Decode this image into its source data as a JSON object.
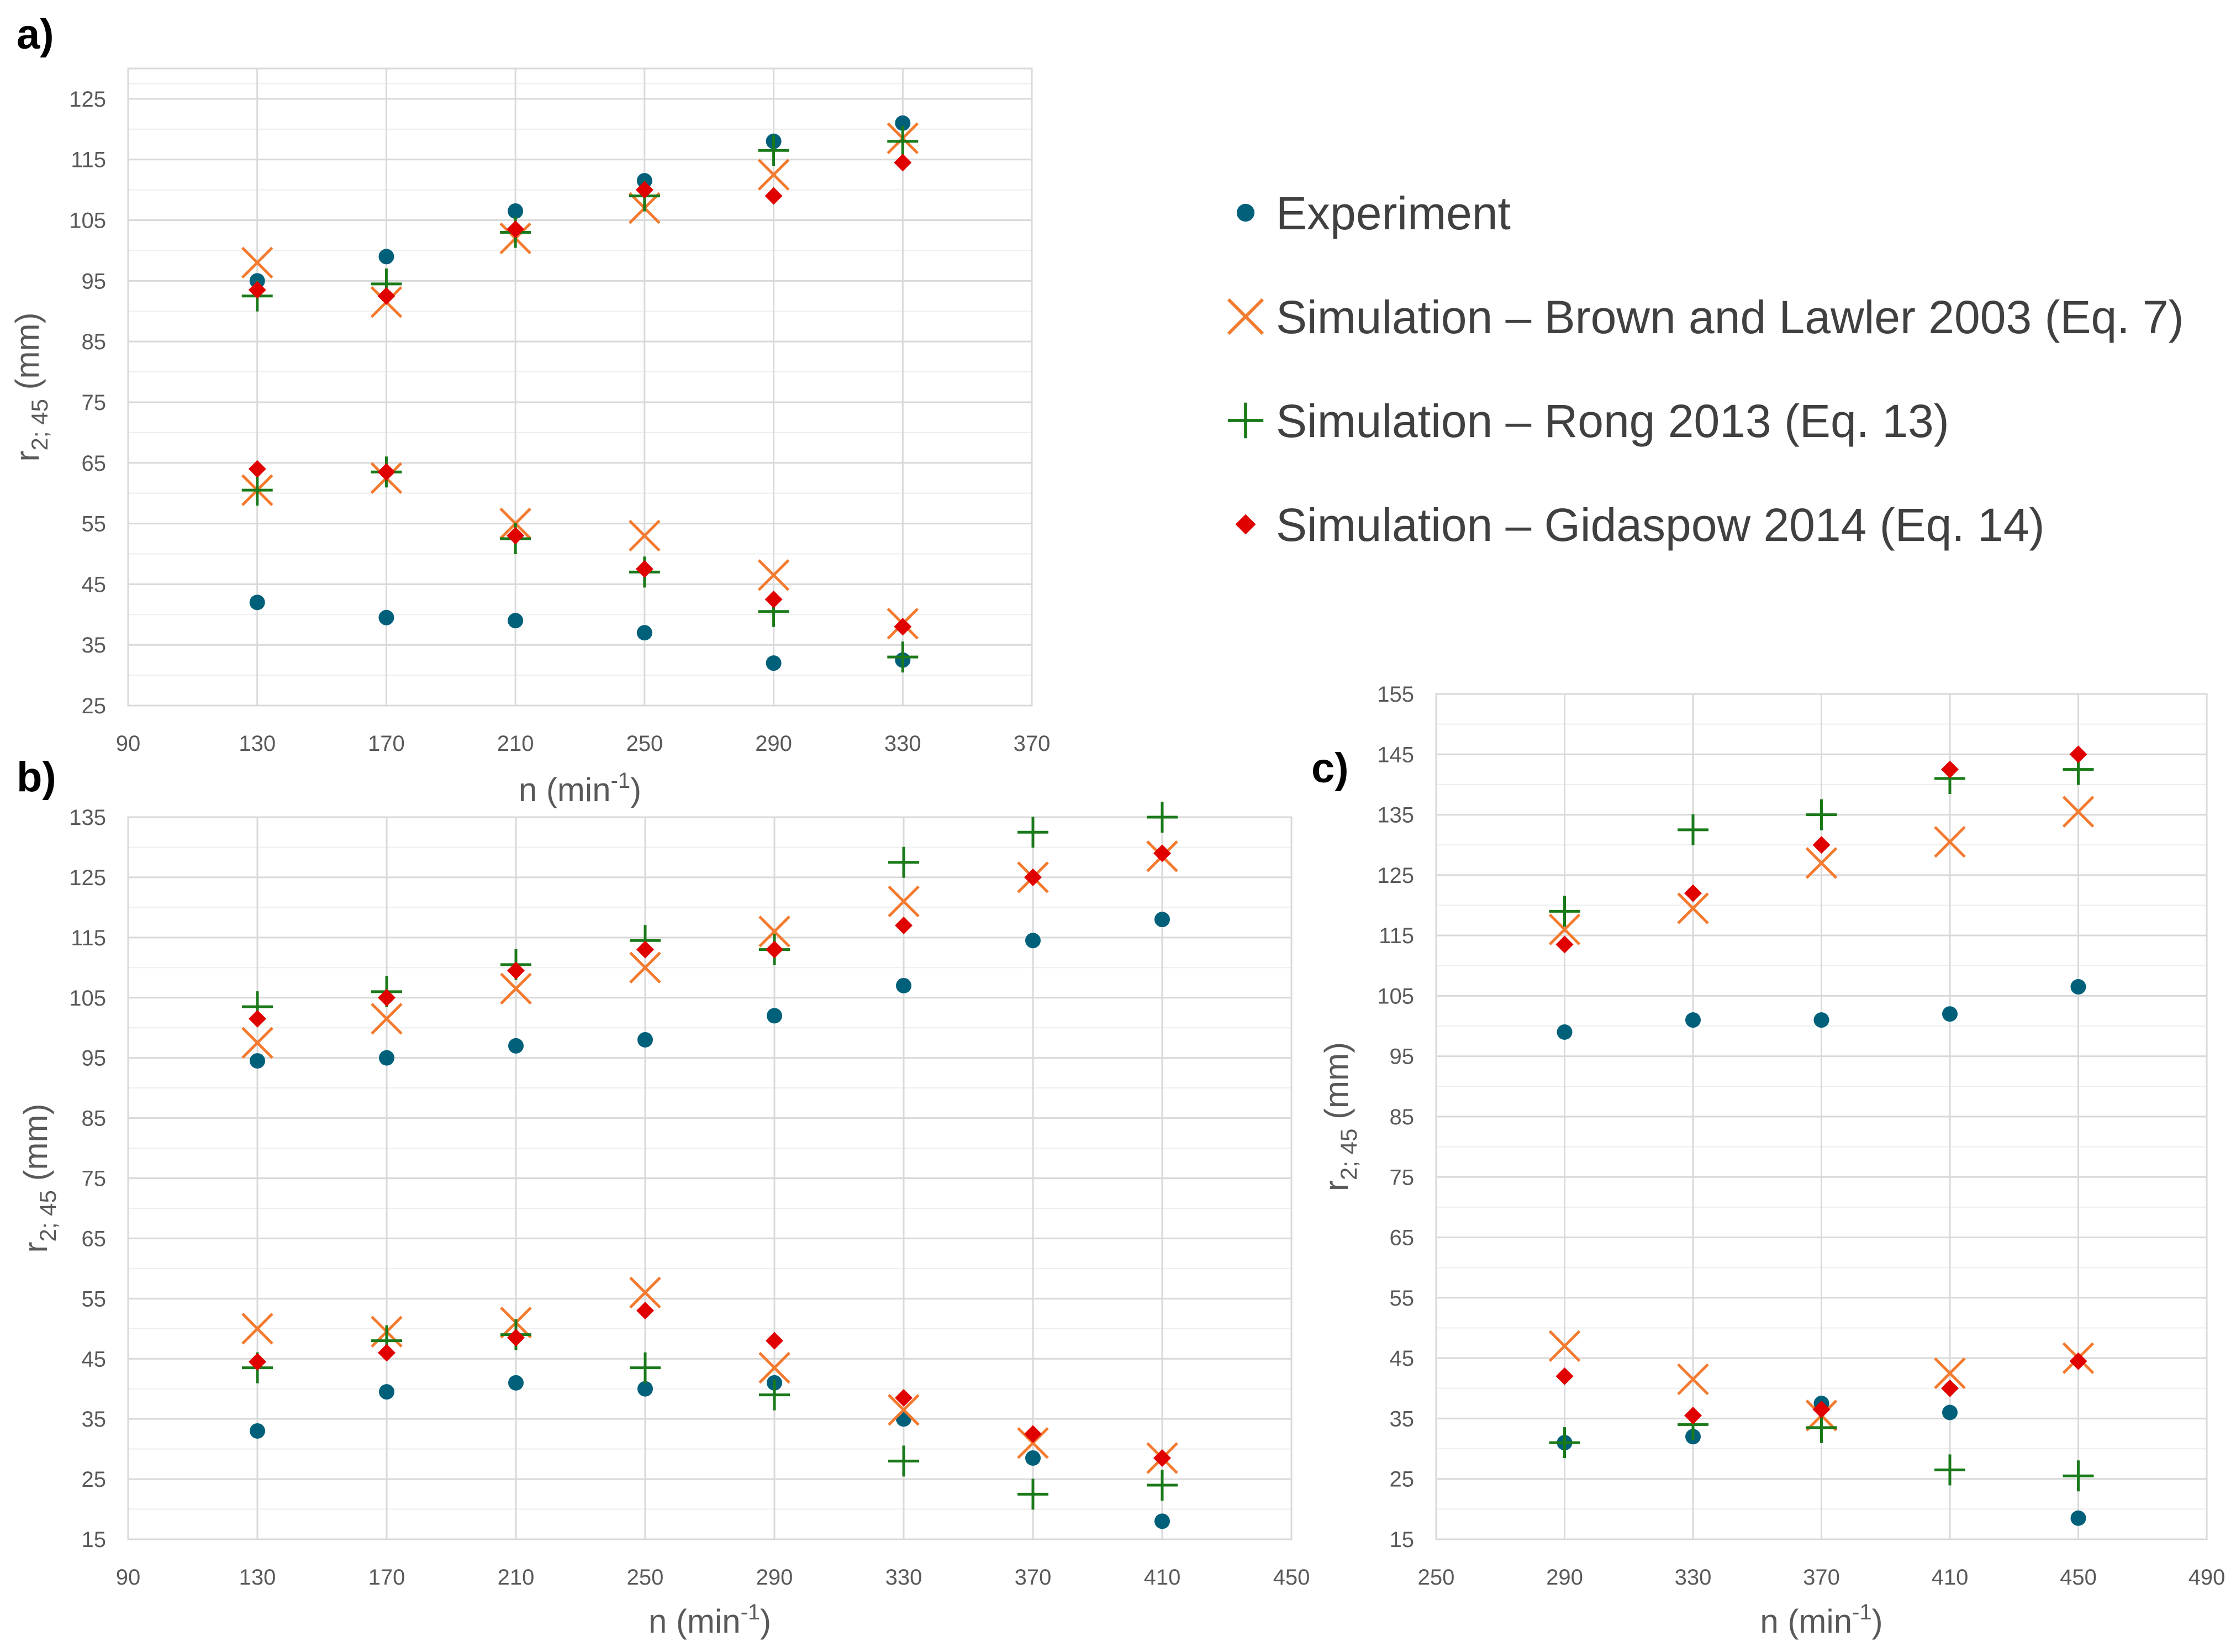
{
  "legend": {
    "items": [
      {
        "name": "Experiment",
        "marker": "circle",
        "color": "#00607a"
      },
      {
        "name": "Simulation – Brown and Lawler 2003 (Eq. 7)",
        "marker": "x",
        "color": "#f37a2e"
      },
      {
        "name": "Simulation – Rong 2013 (Eq. 13)",
        "marker": "plus",
        "color": "#1a7a1a"
      },
      {
        "name": "Simulation – Gidaspow 2014 (Eq. 14)",
        "marker": "diamond",
        "color": "#e00000"
      }
    ]
  },
  "chart_data": [
    {
      "type": "scatter",
      "panel_label": "a)",
      "xlabel": "n (min",
      "xlabel_sup": "-1",
      "xlabel_end": ")",
      "ylabel": "r",
      "ylabel_sub": "2; 45",
      "ylabel_end": " (mm)",
      "xlim": [
        90,
        370
      ],
      "xticks": [
        90,
        130,
        170,
        210,
        250,
        290,
        330,
        370
      ],
      "ylim": [
        25,
        130
      ],
      "yticks": [
        25,
        35,
        45,
        55,
        65,
        75,
        85,
        95,
        105,
        115,
        125
      ],
      "grid": true,
      "series": [
        {
          "name": "Experiment",
          "points": [
            [
              130,
              95
            ],
            [
              170,
              99
            ],
            [
              210,
              106.5
            ],
            [
              250,
              111.5
            ],
            [
              290,
              118
            ],
            [
              330,
              121
            ],
            [
              130,
              42
            ],
            [
              170,
              39.5
            ],
            [
              210,
              39
            ],
            [
              250,
              37
            ],
            [
              290,
              32
            ],
            [
              330,
              32.5
            ]
          ]
        },
        {
          "name": "Simulation – Brown and Lawler 2003 (Eq. 7)",
          "points": [
            [
              130,
              98
            ],
            [
              170,
              91.5
            ],
            [
              210,
              102
            ],
            [
              250,
              107
            ],
            [
              290,
              112.5
            ],
            [
              330,
              118.5
            ],
            [
              130,
              60.5
            ],
            [
              170,
              62.5
            ],
            [
              210,
              55
            ],
            [
              250,
              53
            ],
            [
              290,
              46.5
            ],
            [
              330,
              38.5
            ]
          ]
        },
        {
          "name": "Simulation – Rong 2013 (Eq. 13)",
          "points": [
            [
              130,
              92.5
            ],
            [
              170,
              94.5
            ],
            [
              210,
              103
            ],
            [
              250,
              109
            ],
            [
              290,
              116.5
            ],
            [
              330,
              118
            ],
            [
              130,
              60.5
            ],
            [
              170,
              63.5
            ],
            [
              210,
              52.5
            ],
            [
              250,
              47
            ],
            [
              290,
              40.5
            ],
            [
              330,
              33
            ]
          ]
        },
        {
          "name": "Simulation – Gidaspow 2014 (Eq. 14)",
          "points": [
            [
              130,
              93.5
            ],
            [
              170,
              92.5
            ],
            [
              210,
              103.5
            ],
            [
              250,
              110
            ],
            [
              290,
              109
            ],
            [
              330,
              114.5
            ],
            [
              130,
              64
            ],
            [
              170,
              63.5
            ],
            [
              210,
              53
            ],
            [
              250,
              47.5
            ],
            [
              290,
              42.5
            ],
            [
              330,
              38
            ]
          ]
        }
      ]
    },
    {
      "type": "scatter",
      "panel_label": "b)",
      "xlabel": "n (min",
      "xlabel_sup": "-1",
      "xlabel_end": ")",
      "ylabel": "r",
      "ylabel_sub": "2; 45",
      "ylabel_end": " (mm)",
      "xlim": [
        90,
        450
      ],
      "xticks": [
        90,
        130,
        170,
        210,
        250,
        290,
        330,
        370,
        410,
        450
      ],
      "ylim": [
        15,
        135
      ],
      "yticks": [
        15,
        25,
        35,
        45,
        55,
        65,
        75,
        85,
        95,
        105,
        115,
        125,
        135
      ],
      "grid": true,
      "series": [
        {
          "name": "Experiment",
          "points": [
            [
              130,
              94.5
            ],
            [
              170,
              95
            ],
            [
              210,
              97
            ],
            [
              250,
              98
            ],
            [
              290,
              102
            ],
            [
              330,
              107
            ],
            [
              370,
              114.5
            ],
            [
              410,
              118
            ],
            [
              130,
              33
            ],
            [
              170,
              39.5
            ],
            [
              210,
              41
            ],
            [
              250,
              40
            ],
            [
              290,
              41
            ],
            [
              330,
              35
            ],
            [
              370,
              28.5
            ],
            [
              410,
              18
            ]
          ]
        },
        {
          "name": "Simulation – Brown and Lawler 2003 (Eq. 7)",
          "points": [
            [
              130,
              97.5
            ],
            [
              170,
              101.5
            ],
            [
              210,
              106.5
            ],
            [
              250,
              110
            ],
            [
              290,
              116
            ],
            [
              330,
              121
            ],
            [
              370,
              125
            ],
            [
              410,
              128.5
            ],
            [
              130,
              50
            ],
            [
              170,
              49.5
            ],
            [
              210,
              51
            ],
            [
              250,
              56
            ],
            [
              290,
              43.5
            ],
            [
              330,
              36.5
            ],
            [
              370,
              31
            ],
            [
              410,
              28.5
            ]
          ]
        },
        {
          "name": "Simulation – Rong 2013 (Eq. 13)",
          "points": [
            [
              130,
              103.5
            ],
            [
              170,
              106
            ],
            [
              210,
              110.5
            ],
            [
              250,
              114.5
            ],
            [
              290,
              113
            ],
            [
              330,
              127.5
            ],
            [
              370,
              132.5
            ],
            [
              410,
              135
            ],
            [
              130,
              43.5
            ],
            [
              170,
              48
            ],
            [
              210,
              49
            ],
            [
              250,
              43.5
            ],
            [
              290,
              39
            ],
            [
              330,
              28
            ],
            [
              370,
              22.5
            ],
            [
              410,
              24
            ]
          ]
        },
        {
          "name": "Simulation – Gidaspow 2014 (Eq. 14)",
          "points": [
            [
              130,
              101.5
            ],
            [
              170,
              105
            ],
            [
              210,
              109.5
            ],
            [
              250,
              113
            ],
            [
              290,
              113
            ],
            [
              330,
              117
            ],
            [
              370,
              125
            ],
            [
              410,
              129
            ],
            [
              130,
              44.5
            ],
            [
              170,
              46
            ],
            [
              210,
              48.5
            ],
            [
              250,
              53
            ],
            [
              290,
              48
            ],
            [
              330,
              38.5
            ],
            [
              370,
              32.5
            ],
            [
              410,
              28.5
            ]
          ]
        }
      ]
    },
    {
      "type": "scatter",
      "panel_label": "c)",
      "xlabel": "n (min",
      "xlabel_sup": "-1",
      "xlabel_end": ")",
      "ylabel": "r",
      "ylabel_sub": "2; 45",
      "ylabel_end": " (mm)",
      "xlim": [
        250,
        490
      ],
      "xticks": [
        250,
        290,
        330,
        370,
        410,
        450,
        490
      ],
      "ylim": [
        15,
        155
      ],
      "yticks": [
        15,
        25,
        35,
        45,
        55,
        65,
        75,
        85,
        95,
        105,
        115,
        125,
        135,
        145,
        155
      ],
      "grid": true,
      "series": [
        {
          "name": "Experiment",
          "points": [
            [
              290,
              99
            ],
            [
              330,
              101
            ],
            [
              370,
              101
            ],
            [
              410,
              102
            ],
            [
              450,
              106.5
            ],
            [
              290,
              31
            ],
            [
              330,
              32
            ],
            [
              370,
              37.5
            ],
            [
              410,
              36
            ],
            [
              450,
              18.5
            ]
          ]
        },
        {
          "name": "Simulation – Brown and Lawler 2003 (Eq. 7)",
          "points": [
            [
              290,
              116
            ],
            [
              330,
              119.5
            ],
            [
              370,
              127
            ],
            [
              410,
              130.5
            ],
            [
              450,
              135.5
            ],
            [
              290,
              47
            ],
            [
              330,
              41.5
            ],
            [
              370,
              35.5
            ],
            [
              410,
              42.5
            ],
            [
              450,
              45
            ]
          ]
        },
        {
          "name": "Simulation – Rong 2013 (Eq. 13)",
          "points": [
            [
              290,
              119
            ],
            [
              330,
              132.5
            ],
            [
              370,
              135
            ],
            [
              410,
              141
            ],
            [
              450,
              142.5
            ],
            [
              290,
              31
            ],
            [
              330,
              34
            ],
            [
              370,
              33.5
            ],
            [
              410,
              26.5
            ],
            [
              450,
              25.5
            ]
          ]
        },
        {
          "name": "Simulation – Gidaspow 2014 (Eq. 14)",
          "points": [
            [
              290,
              113.5
            ],
            [
              330,
              122
            ],
            [
              370,
              130
            ],
            [
              410,
              142.5
            ],
            [
              450,
              145
            ],
            [
              290,
              42
            ],
            [
              330,
              35.5
            ],
            [
              370,
              36.5
            ],
            [
              410,
              40
            ],
            [
              450,
              44.5
            ]
          ]
        }
      ]
    }
  ]
}
